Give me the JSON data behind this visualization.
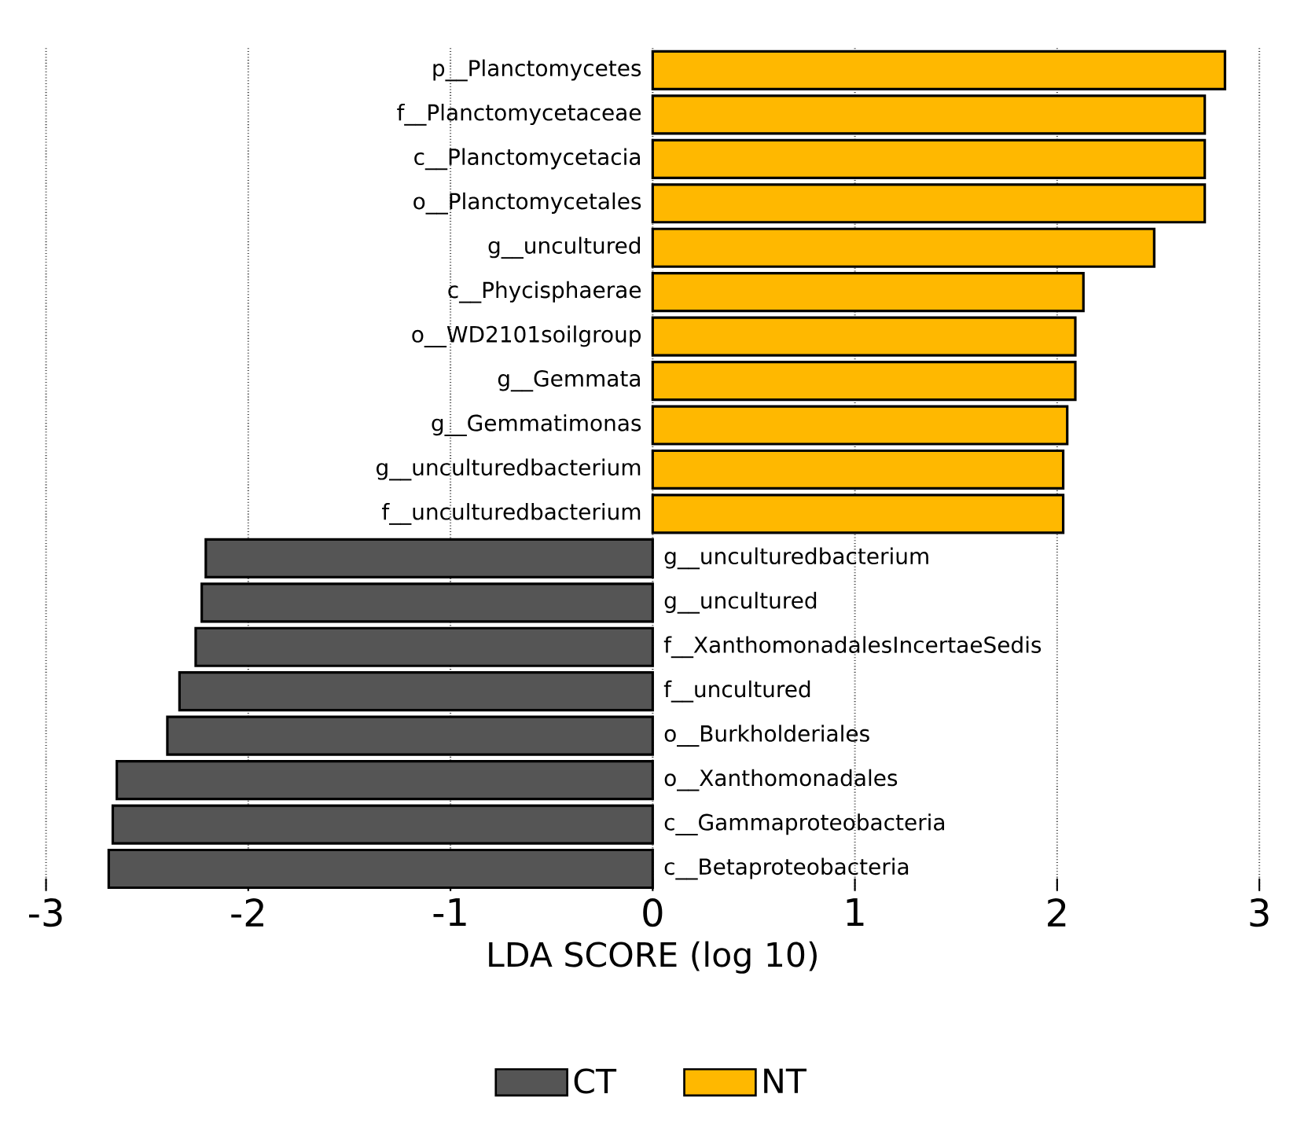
{
  "chart_data": {
    "type": "bar",
    "orientation": "horizontal",
    "xlabel": "LDA SCORE (log 10)",
    "categories": [
      "p__Planctomycetes",
      "f__Planctomycetaceae",
      "c__Planctomycetacia",
      "o__Planctomycetales",
      "g__uncultured",
      "c__Phycisphaerae",
      "o__WD2101soilgroup",
      "g__Gemmata",
      "g__Gemmatimonas",
      "g__unculturedbacterium",
      "f__unculturedbacterium",
      "g__unculturedbacterium",
      "g__uncultured",
      "f__XanthomonadalesIncertaeSedis",
      "f__uncultured",
      "o__Burkholderiales",
      "o__Xanthomonadales",
      "c__Gammaproteobacteria",
      "c__Betaproteobacteria"
    ],
    "series": [
      {
        "name": "CT",
        "color": "#555555",
        "values": [
          null,
          null,
          null,
          null,
          null,
          null,
          null,
          null,
          null,
          null,
          null,
          -2.21,
          -2.23,
          -2.26,
          -2.34,
          -2.4,
          -2.65,
          -2.67,
          -2.69
        ]
      },
      {
        "name": "NT",
        "color": "#ffb800",
        "values": [
          2.83,
          2.73,
          2.73,
          2.73,
          2.48,
          2.13,
          2.09,
          2.09,
          2.05,
          2.03,
          2.03,
          null,
          null,
          null,
          null,
          null,
          null,
          null,
          null
        ]
      }
    ],
    "xlim": [
      -3,
      3
    ],
    "xticks": [
      -3,
      -2,
      -1,
      0,
      1,
      2,
      3
    ],
    "grid": "x",
    "legend": "bottom"
  }
}
